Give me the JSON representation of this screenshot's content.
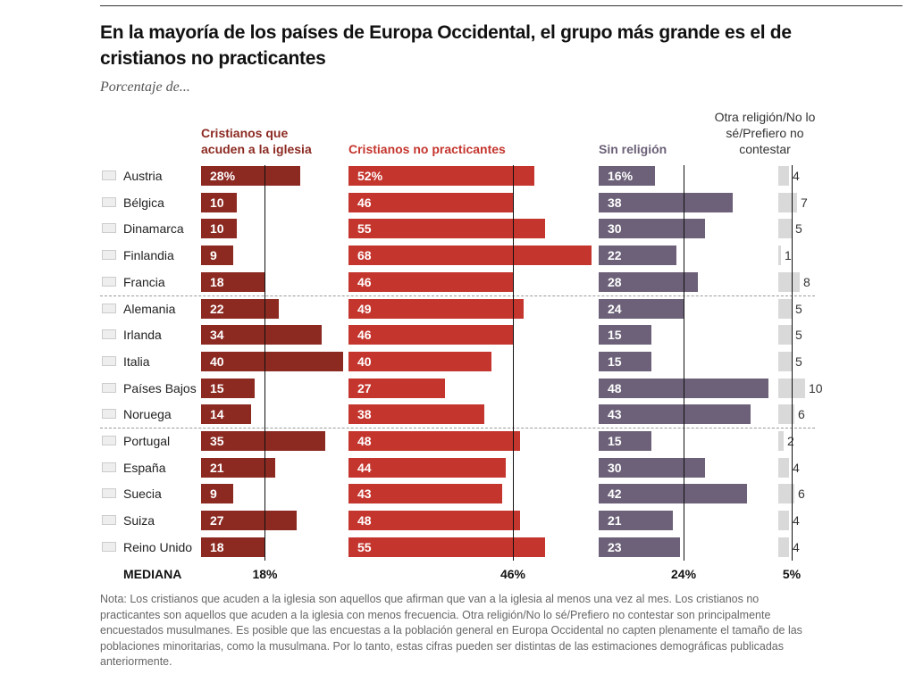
{
  "chart_data": {
    "type": "bar",
    "title": "En la mayoría de los países de Europa Occidental, el grupo más grande es el de cristianos no practicantes",
    "subtitle": "Porcentaje de...",
    "categories": [
      "Austria",
      "Bélgica",
      "Dinamarca",
      "Finlandia",
      "Francia",
      "Alemania",
      "Irlanda",
      "Italia",
      "Países Bajos",
      "Noruega",
      "Portugal",
      "España",
      "Suecia",
      "Suiza",
      "Reino Unido"
    ],
    "series": [
      {
        "name": "Cristianos que acuden a la iglesia",
        "color": "#8c2a22",
        "values": [
          28,
          10,
          10,
          9,
          18,
          22,
          34,
          40,
          15,
          14,
          35,
          21,
          9,
          27,
          18
        ],
        "value_labels": [
          "28%",
          "10",
          "10",
          "9",
          "18",
          "22",
          "34",
          "40",
          "15",
          "14",
          "35",
          "21",
          "9",
          "27",
          "18"
        ],
        "median": 18,
        "median_label": "18%"
      },
      {
        "name": "Cristianos no practicantes",
        "color": "#c4352d",
        "values": [
          52,
          46,
          55,
          68,
          46,
          49,
          46,
          40,
          27,
          38,
          48,
          44,
          43,
          48,
          55
        ],
        "value_labels": [
          "52%",
          "46",
          "55",
          "68",
          "46",
          "49",
          "46",
          "40",
          "27",
          "38",
          "48",
          "44",
          "43",
          "48",
          "55"
        ],
        "median": 46,
        "median_label": "46%"
      },
      {
        "name": "Sin religión",
        "color": "#6c6178",
        "values": [
          16,
          38,
          30,
          22,
          28,
          24,
          15,
          15,
          48,
          43,
          15,
          30,
          42,
          21,
          23
        ],
        "value_labels": [
          "16%",
          "38",
          "30",
          "22",
          "28",
          "24",
          "15",
          "15",
          "48",
          "43",
          "15",
          "30",
          "42",
          "21",
          "23"
        ],
        "median": 24,
        "median_label": "24%"
      },
      {
        "name": "Otra religión/No lo sé/Prefiero no contestar",
        "color": "#d9d9d9",
        "values": [
          4,
          7,
          5,
          1,
          8,
          5,
          5,
          5,
          10,
          6,
          2,
          4,
          6,
          4,
          4
        ],
        "median": 5,
        "median_label": "5%"
      }
    ],
    "median_title": "MEDIANA",
    "note": "Nota: Los cristianos que acuden a la iglesia son aquellos que afirman que van a la iglesia al menos una vez al mes. Los cristianos no practicantes son aquellos que acuden a la iglesia con menos frecuencia. Otra religión/No lo sé/Prefiero no contestar son principalmente encuestados musulmanes. Es posible que las encuestas a la población general en Europa Occidental no capten plenamente el tamaño de las poblaciones minoritarias, como la musulmana. Por lo tanto, estas cifras pueden ser distintas de las estimaciones demográficas publicadas anteriormente."
  }
}
